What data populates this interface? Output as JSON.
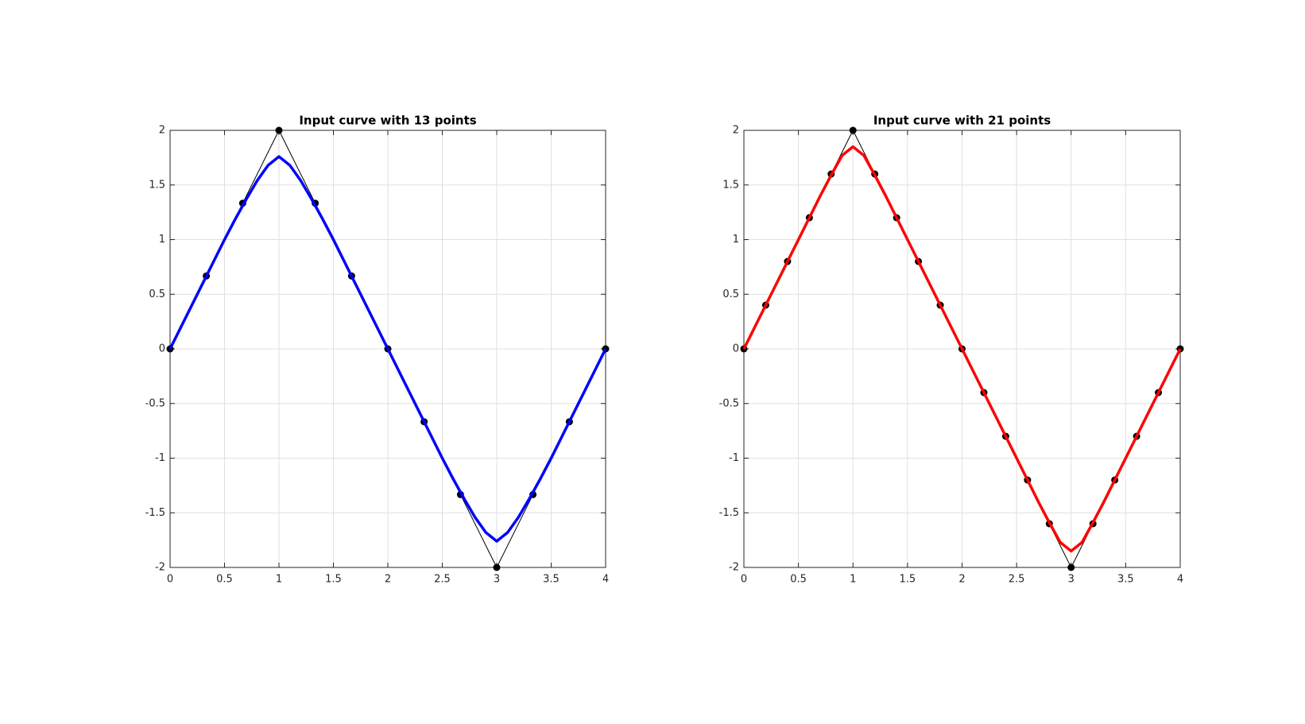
{
  "chart_data": [
    {
      "type": "line",
      "title": "Input curve with 13 points",
      "xlim": [
        0,
        4
      ],
      "ylim": [
        -2,
        2
      ],
      "xticks": [
        0,
        0.5,
        1,
        1.5,
        2,
        2.5,
        3,
        3.5,
        4
      ],
      "yticks": [
        -2,
        -1.5,
        -1,
        -0.5,
        0,
        0.5,
        1,
        1.5,
        2
      ],
      "grid": true,
      "series": [
        {
          "color": "#000000",
          "marker": "o",
          "x": [
            0,
            0.333,
            0.667,
            1,
            1.333,
            1.667,
            2,
            2.333,
            2.667,
            3,
            3.333,
            3.667,
            4
          ],
          "values": [
            0,
            0.667,
            1.333,
            2,
            1.333,
            0.667,
            0,
            -0.667,
            -1.333,
            -2,
            -1.333,
            -0.667,
            0
          ]
        },
        {
          "color": "#0000ff",
          "x": [
            0,
            0.1,
            0.2,
            0.3,
            0.4,
            0.5,
            0.6,
            0.7,
            0.8,
            0.9,
            1,
            1.1,
            1.2,
            1.3,
            1.4,
            1.5,
            1.6,
            1.7,
            1.8,
            1.9,
            2,
            2.1,
            2.2,
            2.3,
            2.4,
            2.5,
            2.6,
            2.7,
            2.8,
            2.9,
            3,
            3.1,
            3.2,
            3.3,
            3.4,
            3.5,
            3.6,
            3.7,
            3.8,
            3.9,
            4
          ],
          "values": [
            0,
            0.2,
            0.4,
            0.6,
            0.8,
            1.0,
            1.19,
            1.37,
            1.54,
            1.68,
            1.76,
            1.68,
            1.54,
            1.37,
            1.19,
            1.0,
            0.8,
            0.6,
            0.4,
            0.2,
            0,
            -0.2,
            -0.4,
            -0.6,
            -0.8,
            -1.0,
            -1.19,
            -1.37,
            -1.54,
            -1.68,
            -1.76,
            -1.68,
            -1.54,
            -1.37,
            -1.19,
            -1.0,
            -0.8,
            -0.6,
            -0.4,
            -0.2,
            0
          ]
        }
      ]
    },
    {
      "type": "line",
      "title": "Input curve with 21 points",
      "xlim": [
        0,
        4
      ],
      "ylim": [
        -2,
        2
      ],
      "xticks": [
        0,
        0.5,
        1,
        1.5,
        2,
        2.5,
        3,
        3.5,
        4
      ],
      "yticks": [
        -2,
        -1.5,
        -1,
        -0.5,
        0,
        0.5,
        1,
        1.5,
        2
      ],
      "grid": true,
      "series": [
        {
          "color": "#000000",
          "marker": "o",
          "x": [
            0,
            0.2,
            0.4,
            0.6,
            0.8,
            1,
            1.2,
            1.4,
            1.6,
            1.8,
            2,
            2.2,
            2.4,
            2.6,
            2.8,
            3,
            3.2,
            3.4,
            3.6,
            3.8,
            4
          ],
          "values": [
            0,
            0.4,
            0.8,
            1.2,
            1.6,
            2,
            1.6,
            1.2,
            0.8,
            0.4,
            0,
            -0.4,
            -0.8,
            -1.2,
            -1.6,
            -2,
            -1.6,
            -1.2,
            -0.8,
            -0.4,
            0
          ]
        },
        {
          "color": "#ff0000",
          "x": [
            0,
            0.1,
            0.2,
            0.3,
            0.4,
            0.5,
            0.6,
            0.7,
            0.8,
            0.9,
            1,
            1.1,
            1.2,
            1.3,
            1.4,
            1.5,
            1.6,
            1.7,
            1.8,
            1.9,
            2,
            2.1,
            2.2,
            2.3,
            2.4,
            2.5,
            2.6,
            2.7,
            2.8,
            2.9,
            3,
            3.1,
            3.2,
            3.3,
            3.4,
            3.5,
            3.6,
            3.7,
            3.8,
            3.9,
            4
          ],
          "values": [
            0,
            0.2,
            0.4,
            0.6,
            0.8,
            1.0,
            1.2,
            1.4,
            1.59,
            1.77,
            1.85,
            1.77,
            1.59,
            1.4,
            1.2,
            1.0,
            0.8,
            0.6,
            0.4,
            0.2,
            0,
            -0.2,
            -0.4,
            -0.6,
            -0.8,
            -1.0,
            -1.2,
            -1.4,
            -1.59,
            -1.77,
            -1.85,
            -1.77,
            -1.59,
            -1.4,
            -1.2,
            -1.0,
            -0.8,
            -0.6,
            -0.4,
            -0.2,
            0
          ]
        }
      ]
    }
  ]
}
